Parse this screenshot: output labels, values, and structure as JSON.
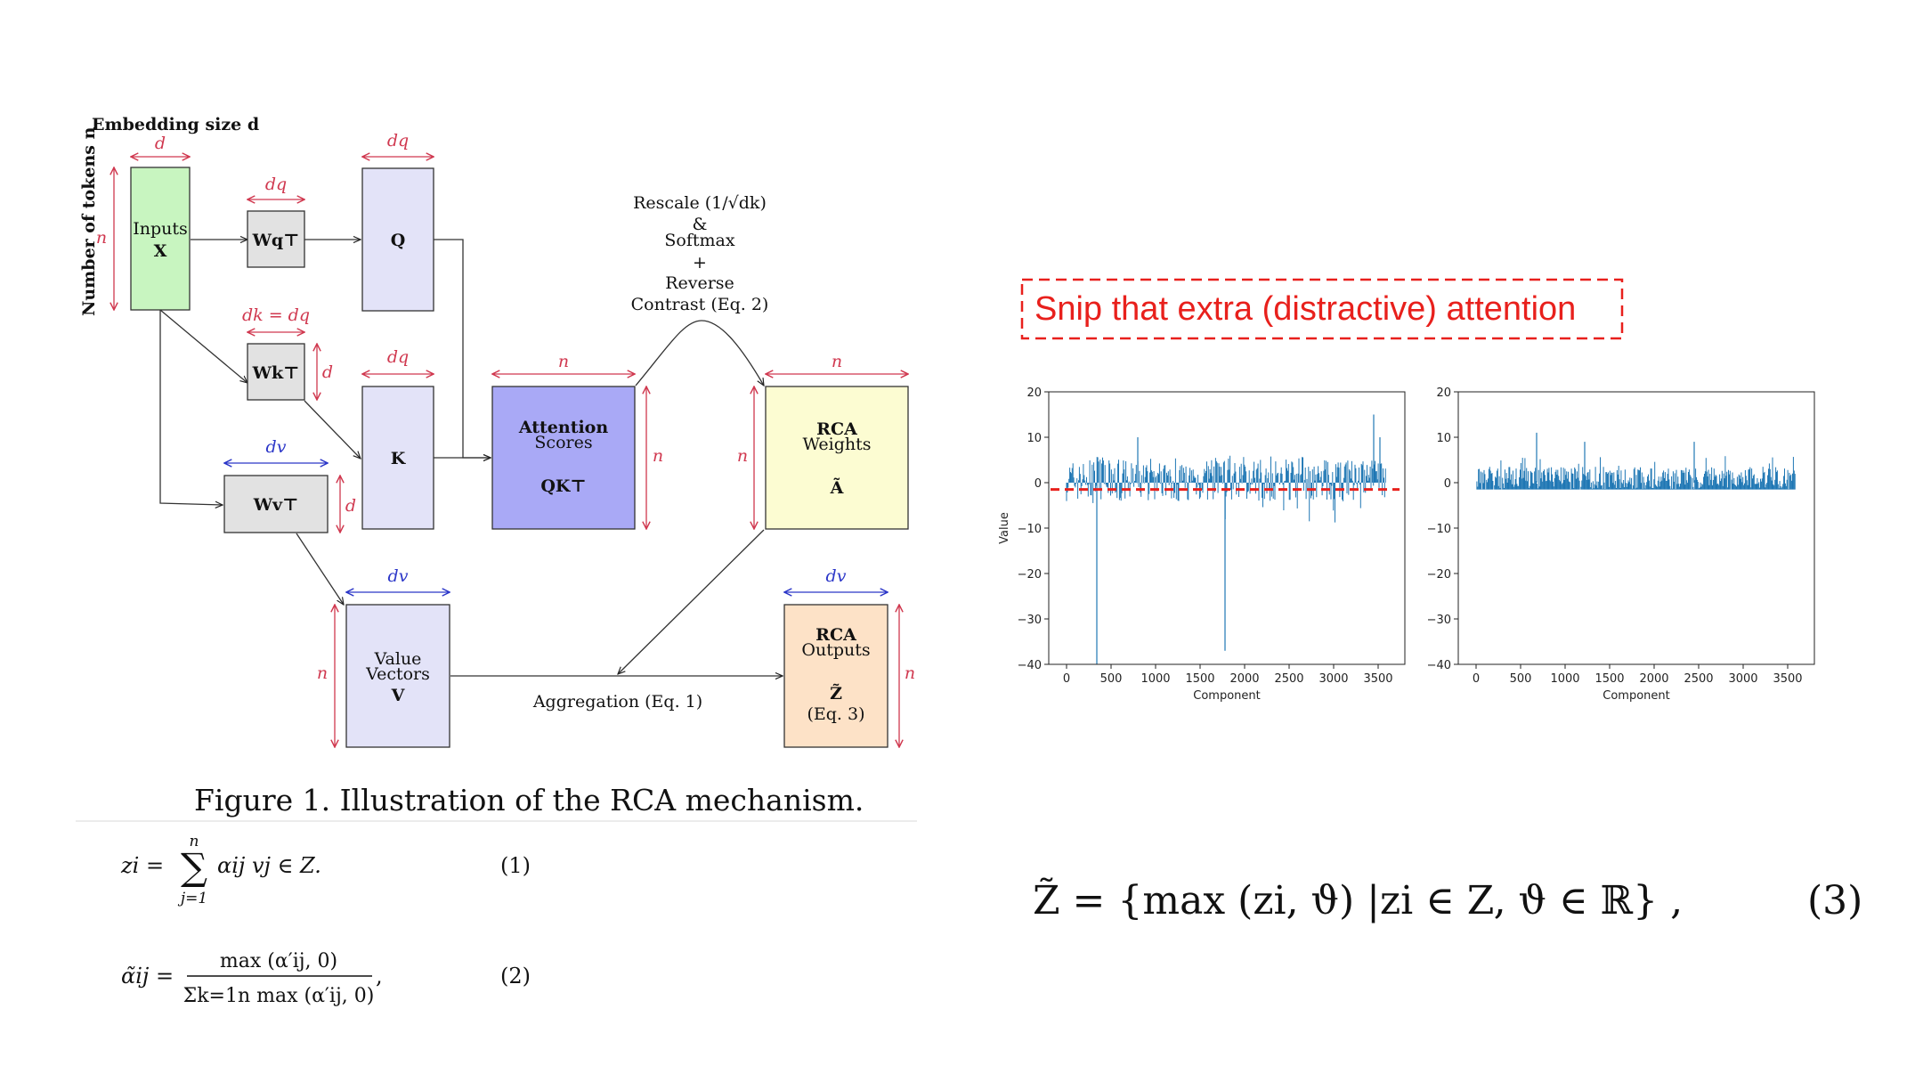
{
  "diagram": {
    "axis_labels": {
      "embedding": "Embedding size d",
      "tokens": "Number of tokens n"
    },
    "dims": {
      "d": "d",
      "dq": "dq",
      "dk_eq": "dk = dq",
      "dv": "dv",
      "n": "n"
    },
    "nodes": {
      "inputs": {
        "line1": "Inputs",
        "line2": "X",
        "color": "#c8f5c0"
      },
      "wq": {
        "label": "Wq⊤",
        "color": "#e2e2e2"
      },
      "wk": {
        "label": "Wk⊤",
        "color": "#e2e2e2"
      },
      "wv": {
        "label": "Wv⊤",
        "color": "#e2e2e2"
      },
      "q": {
        "label": "Q",
        "color": "#e3e3f8"
      },
      "k": {
        "label": "K",
        "color": "#e3e3f8"
      },
      "v": {
        "line1": "Value",
        "line2": "Vectors",
        "line3": "V",
        "color": "#e3e3f8"
      },
      "attn": {
        "line1": "Attention",
        "line2": "Scores",
        "line3": "QK⊤",
        "color": "#a9a9f6"
      },
      "rca_w": {
        "line1": "RCA",
        "line2": "Weights",
        "line3": "Ã",
        "color": "#fcfcd2"
      },
      "rca_o": {
        "line1": "RCA",
        "line2": "Outputs",
        "line3": "Z̃",
        "line4": "(Eq. 3)",
        "color": "#fde2c7"
      }
    },
    "rescale": {
      "line1": "Rescale (1/√dk)",
      "line2": "&",
      "line3": "Softmax",
      "line4": "+",
      "line5": "Reverse",
      "line6": "Contrast (Eq. 2)"
    },
    "aggregation": "Aggregation (Eq. 1)",
    "caption": "Figure 1. Illustration of the RCA mechanism.",
    "colors": {
      "dim_red": "#d0384f",
      "dim_blue": "#2b36c8",
      "link_blue": "#3a7bc8"
    }
  },
  "equations": {
    "eq1": {
      "lhs": "zi =",
      "sum_top": "n",
      "sum_bottom": "j=1",
      "rhs": "αij vj ∈ Z.",
      "num": "(1)"
    },
    "eq2": {
      "lhs": "α̃ij =",
      "numerator": "max (α′ij, 0)",
      "denominator": "Σk=1n max (α′ij, 0)",
      "comma": ",",
      "num": "(2)"
    },
    "eq3": {
      "expr": "Z̃ = {max (zi, ϑ) |zi ∈ Z, ϑ ∈ ℝ} ,",
      "num": "(3)"
    }
  },
  "snip_title": "Snip that extra (distractive) attention",
  "snip_color": "#e8201c",
  "chart_data": [
    {
      "type": "bar",
      "xlabel": "Component",
      "ylabel": "Value",
      "xlim": [
        -200,
        3800
      ],
      "ylim": [
        -40,
        20
      ],
      "xticks": [
        0,
        500,
        1000,
        1500,
        2000,
        2500,
        3000,
        3500
      ],
      "yticks": [
        20,
        10,
        0,
        -10,
        -20,
        -30,
        -40
      ],
      "threshold": -1.5,
      "series_color": "#1f77b4",
      "n_components": 3584,
      "spikes": [
        {
          "x": 340,
          "y": -40
        },
        {
          "x": 1780,
          "y": -37
        },
        {
          "x": 800,
          "y": 10
        },
        {
          "x": 3450,
          "y": 15
        },
        {
          "x": 3520,
          "y": 10
        }
      ]
    },
    {
      "type": "bar",
      "xlabel": "Component",
      "ylabel": "",
      "xlim": [
        -200,
        3800
      ],
      "ylim": [
        -40,
        20
      ],
      "xticks": [
        0,
        500,
        1000,
        1500,
        2000,
        2500,
        3000,
        3500
      ],
      "yticks": [
        20,
        10,
        0,
        -10,
        -20,
        -30,
        -40
      ],
      "series_color": "#1f77b4",
      "n_components": 3584,
      "spikes": [
        {
          "x": 680,
          "y": 11
        },
        {
          "x": 1220,
          "y": 9
        },
        {
          "x": 2450,
          "y": 9
        }
      ]
    }
  ]
}
